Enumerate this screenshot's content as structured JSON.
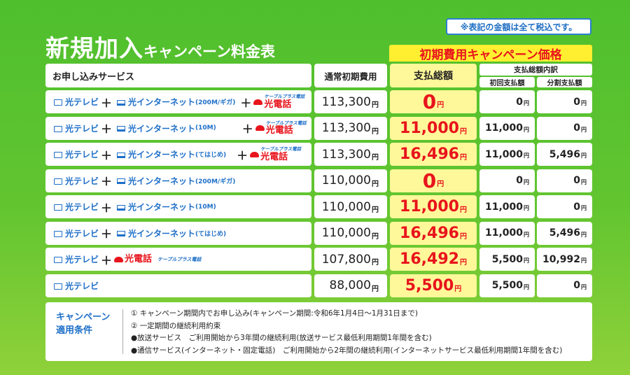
{
  "tax_note": "※表記の金額は全て税込です。",
  "title": {
    "main": "新規加入",
    "sub": "キャンペーン料金表"
  },
  "campaign_banner": "初期費用キャンペーン価格",
  "headers": {
    "service": "お申し込みサービス",
    "normal": "通常初期費用",
    "total": "支払総額",
    "breakdown": "支払総額内訳",
    "first": "初回支払額",
    "installment": "分割支払額"
  },
  "labels": {
    "tv": "光テレビ",
    "net": "光インターネット",
    "phone": "光電話",
    "cable_plus": "ケーブルプラス電話",
    "plus": "＋",
    "yen": "円"
  },
  "rows": [
    {
      "net_note": "(200M/ギガ)",
      "has_net": true,
      "has_phone": true,
      "normal": "113,300",
      "total": "0",
      "first": "0",
      "installment": "0"
    },
    {
      "net_note": "(10M)",
      "has_net": true,
      "has_phone": true,
      "normal": "113,300",
      "total": "11,000",
      "first": "11,000",
      "installment": "0"
    },
    {
      "net_note": "(てはじめ)",
      "has_net": true,
      "has_phone": true,
      "normal": "113,300",
      "total": "16,496",
      "first": "11,000",
      "installment": "5,496"
    },
    {
      "net_note": "(200M/ギガ)",
      "has_net": true,
      "has_phone": false,
      "normal": "110,000",
      "total": "0",
      "first": "0",
      "installment": "0"
    },
    {
      "net_note": "(10M)",
      "has_net": true,
      "has_phone": false,
      "normal": "110,000",
      "total": "11,000",
      "first": "11,000",
      "installment": "0"
    },
    {
      "net_note": "(てはじめ)",
      "has_net": true,
      "has_phone": false,
      "normal": "110,000",
      "total": "16,496",
      "first": "11,000",
      "installment": "5,496"
    },
    {
      "net_note": "",
      "has_net": false,
      "has_phone": true,
      "normal": "107,800",
      "total": "16,492",
      "first": "5,500",
      "installment": "10,992"
    },
    {
      "net_note": "",
      "has_net": false,
      "has_phone": false,
      "normal": "88,000",
      "total": "5,500",
      "first": "5,500",
      "installment": "0"
    }
  ],
  "conditions": {
    "label": "キャンペーン\n適用条件",
    "items": [
      "① キャンペーン期間内でお申し込み(キャンペーン期間:令和6年1月4日〜1月31日まで)",
      "② 一定期間の継続利用約束",
      "●放送サービス　ご利用開始から3年間の継続利用(放送サービス最低利用期間1年間を含む)",
      "●通信サービス(インターネット・固定電話)　ご利用開始から2年間の継続利用(インターネットサービス最低利用期間1年間を含む)"
    ]
  }
}
